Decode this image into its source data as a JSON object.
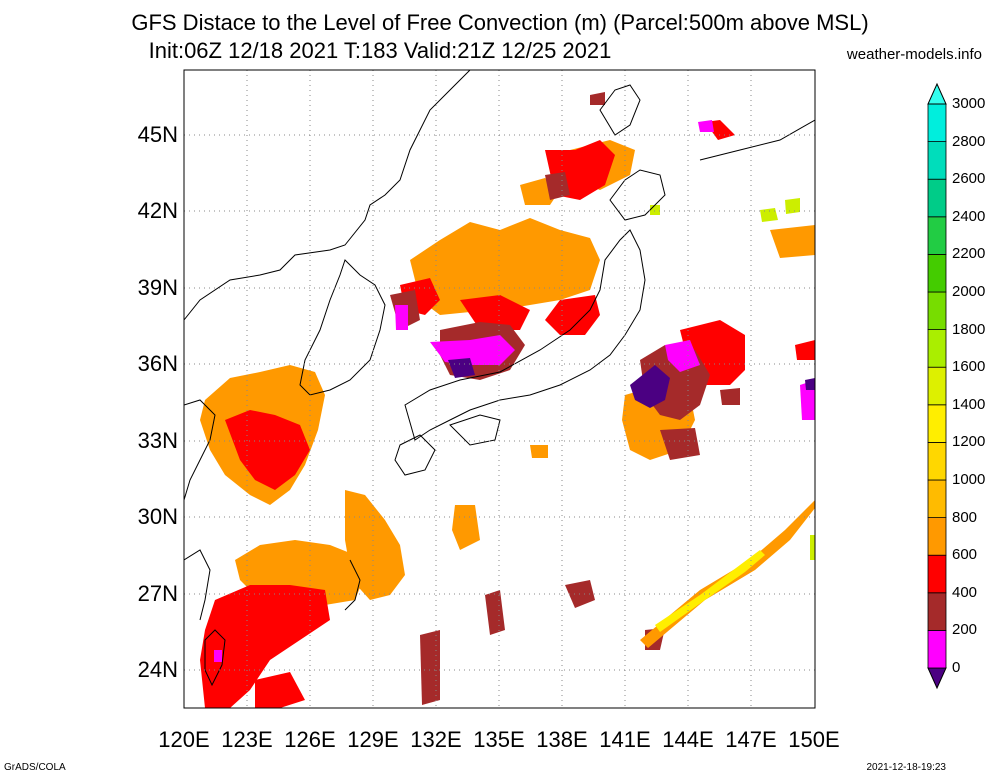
{
  "title": {
    "line1": "GFS Distace to the Level of Free Convection (m) (Parcel:500m above MSL)",
    "line2": "Init:06Z 12/18 2021 T:183 Valid:21Z 12/25 2021"
  },
  "site": "weather-models.info",
  "footer": {
    "left": "GrADS/COLA",
    "right": "2021-12-18-19:23"
  },
  "map": {
    "lon_range": [
      120,
      150
    ],
    "lat_range": [
      22.5,
      47.5
    ],
    "lat_ticks": [
      "24N",
      "27N",
      "30N",
      "33N",
      "36N",
      "39N",
      "42N",
      "45N"
    ],
    "lon_ticks": [
      "120E",
      "123E",
      "126E",
      "129E",
      "132E",
      "135E",
      "138E",
      "141E",
      "144E",
      "147E",
      "150E"
    ],
    "grid": "dotted"
  },
  "colorbar": {
    "levels": [
      "0",
      "200",
      "400",
      "600",
      "800",
      "1000",
      "1200",
      "1400",
      "1600",
      "1800",
      "2000",
      "2200",
      "2400",
      "2600",
      "2800",
      "3000"
    ],
    "colors": [
      "#4b0082",
      "#ff00ff",
      "#a52a2a",
      "#ff0000",
      "#ff9900",
      "#ffbb00",
      "#ffd700",
      "#ffee00",
      "#ddf000",
      "#aaee00",
      "#77dd00",
      "#44cc00",
      "#22cc44",
      "#00cc88",
      "#00ddbb",
      "#00eedd",
      "#33ffee"
    ]
  }
}
